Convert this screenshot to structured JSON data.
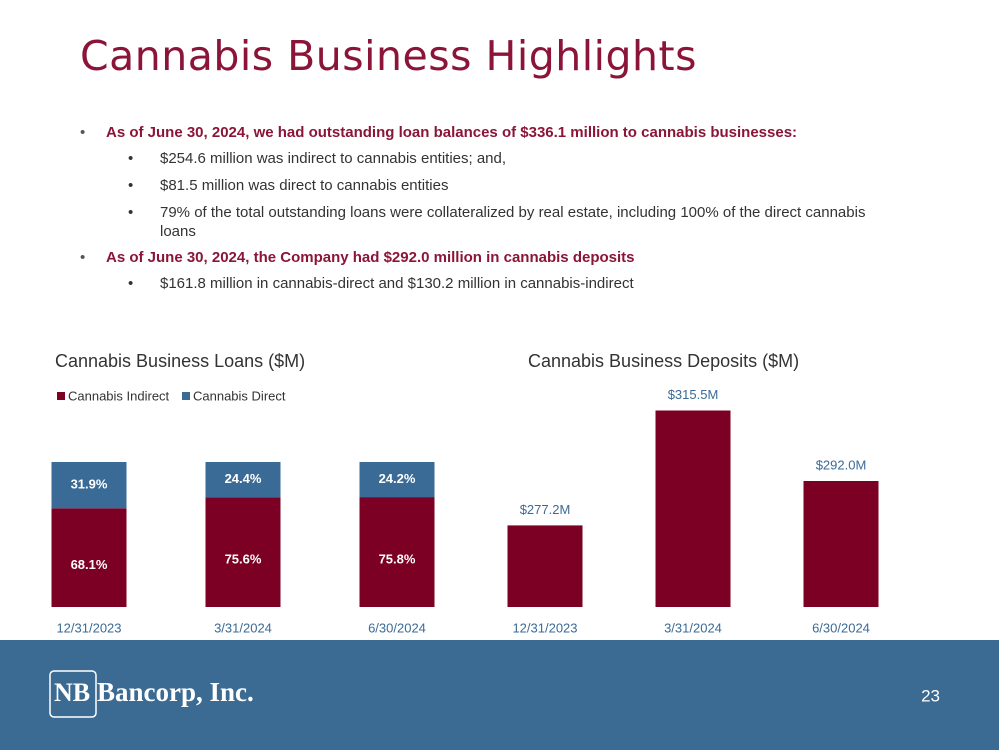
{
  "title": "Cannabis Business Highlights",
  "bullets": [
    {
      "text": "As of June 30, 2024, we had outstanding loan balances of $336.1 million to cannabis businesses:",
      "sub": [
        "$254.6 million was indirect to cannabis entities; and,",
        "$81.5 million was direct to cannabis entities",
        "79% of the total outstanding loans were collateralized by real estate, including 100% of the direct cannabis loans"
      ]
    },
    {
      "text": "As of June 30, 2024, the Company had $292.0 million in cannabis deposits",
      "sub": [
        "$161.8 million in cannabis-direct and $130.2 million in cannabis-indirect"
      ]
    }
  ],
  "chart_data": [
    {
      "type": "stacked_bar",
      "title": "Cannabis Business Loans ($M)",
      "categories": [
        "12/31/2023",
        "3/31/2024",
        "6/30/2024"
      ],
      "series": [
        {
          "name": "Cannabis Indirect",
          "color": "#7b0023",
          "values": [
            68.1,
            75.6,
            75.8
          ],
          "value_labels": [
            "68.1%",
            "75.6%",
            "75.8%"
          ]
        },
        {
          "name": "Cannabis Direct",
          "color": "#3a6b96",
          "values": [
            31.9,
            24.4,
            24.2
          ],
          "value_labels": [
            "31.9%",
            "24.4%",
            "24.2%"
          ]
        }
      ],
      "legend": "top-left"
    },
    {
      "type": "bar",
      "title": "Cannabis Business Deposits ($M)",
      "categories": [
        "12/31/2023",
        "3/31/2024",
        "6/30/2024"
      ],
      "values": [
        277.2,
        315.5,
        292.0
      ],
      "value_labels": [
        "$277.2M",
        "$315.5M",
        "$292.0M"
      ],
      "color": "#7b0023",
      "ylim": [
        250,
        320
      ]
    }
  ],
  "footer": {
    "logo_mark": "NB",
    "logo_text": "Bancorp, Inc.",
    "page": "23"
  }
}
